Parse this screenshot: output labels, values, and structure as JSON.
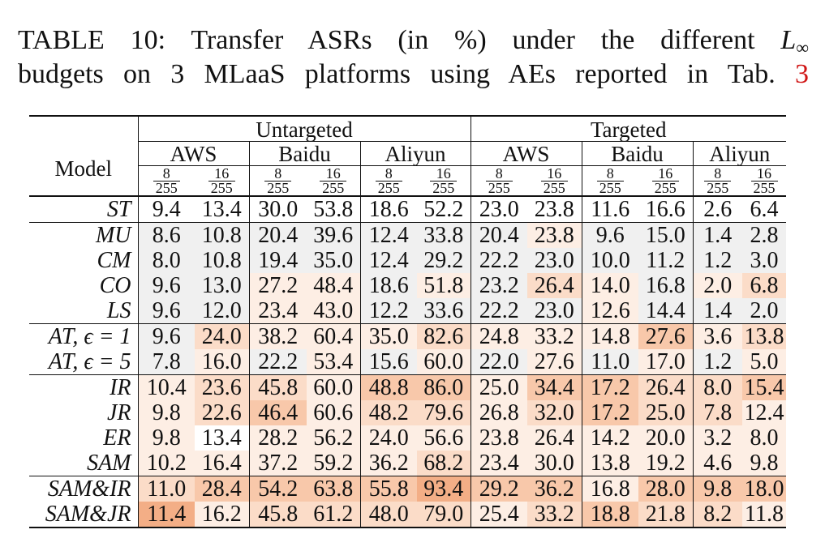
{
  "caption": {
    "line1_a": "TABLE 10: Transfer ASRs (in %) under the different ",
    "line1_L": "L",
    "line1_sub": "∞",
    "line2_a": "budgets on 3 MLaaS platforms using AEs reported in Tab. ",
    "ref": "3"
  },
  "header": {
    "model": "Model",
    "untargeted": "Untargeted",
    "targeted": "Targeted",
    "platforms": [
      "AWS",
      "Baidu",
      "Aliyun",
      "AWS",
      "Baidu",
      "Aliyun"
    ],
    "budget_a_num": "8",
    "budget_b_num": "16",
    "budget_den": "255"
  },
  "rows": [
    {
      "model": "ST",
      "values": [
        "9.4",
        "13.4",
        "30.0",
        "53.8",
        "18.6",
        "52.2",
        "23.0",
        "23.8",
        "11.6",
        "16.6",
        "2.6",
        "6.4"
      ]
    },
    {
      "model": "MU",
      "values": [
        "8.6",
        "10.8",
        "20.4",
        "39.6",
        "12.4",
        "33.8",
        "20.4",
        "23.8",
        "9.6",
        "15.0",
        "1.4",
        "2.8"
      ]
    },
    {
      "model": "CM",
      "values": [
        "8.0",
        "10.8",
        "19.4",
        "35.0",
        "12.4",
        "29.2",
        "22.2",
        "23.0",
        "10.0",
        "11.2",
        "1.2",
        "3.0"
      ]
    },
    {
      "model": "CO",
      "values": [
        "9.6",
        "13.0",
        "27.2",
        "48.4",
        "18.6",
        "51.8",
        "23.2",
        "26.4",
        "14.0",
        "16.8",
        "2.0",
        "6.8"
      ]
    },
    {
      "model": "LS",
      "values": [
        "9.6",
        "12.0",
        "23.4",
        "43.0",
        "12.2",
        "33.6",
        "22.2",
        "23.0",
        "12.6",
        "14.4",
        "1.4",
        "2.0"
      ]
    },
    {
      "model": "AT, ϵ = 1",
      "values": [
        "9.6",
        "24.0",
        "38.2",
        "60.4",
        "35.0",
        "82.6",
        "24.8",
        "33.2",
        "14.8",
        "27.6",
        "3.6",
        "13.8"
      ]
    },
    {
      "model": "AT, ϵ = 5",
      "values": [
        "7.8",
        "16.0",
        "22.2",
        "53.4",
        "15.6",
        "60.0",
        "22.0",
        "27.6",
        "11.0",
        "17.0",
        "1.2",
        "5.0"
      ]
    },
    {
      "model": "IR",
      "values": [
        "10.4",
        "23.6",
        "45.8",
        "60.0",
        "48.8",
        "86.0",
        "25.0",
        "34.4",
        "17.2",
        "26.4",
        "8.0",
        "15.4"
      ]
    },
    {
      "model": "JR",
      "values": [
        "9.8",
        "22.6",
        "46.4",
        "60.6",
        "48.2",
        "79.6",
        "26.8",
        "32.0",
        "17.2",
        "25.0",
        "7.8",
        "12.4"
      ]
    },
    {
      "model": "ER",
      "values": [
        "9.8",
        "13.4",
        "28.2",
        "56.2",
        "24.0",
        "56.6",
        "23.8",
        "26.4",
        "14.2",
        "20.0",
        "3.2",
        "8.0"
      ]
    },
    {
      "model": "SAM",
      "values": [
        "10.2",
        "16.4",
        "37.2",
        "59.2",
        "36.2",
        "68.2",
        "23.4",
        "30.0",
        "13.8",
        "19.2",
        "4.6",
        "9.8"
      ]
    },
    {
      "model": "SAM&IR",
      "values": [
        "11.0",
        "28.4",
        "54.2",
        "63.8",
        "55.8",
        "93.4",
        "29.2",
        "36.2",
        "16.8",
        "28.0",
        "9.8",
        "18.0"
      ]
    },
    {
      "model": "SAM&JR",
      "values": [
        "11.4",
        "16.2",
        "45.8",
        "61.2",
        "48.0",
        "79.0",
        "25.4",
        "33.2",
        "18.8",
        "21.8",
        "8.2",
        "11.8"
      ]
    }
  ],
  "shading": {
    "gray": "#f0f0f0",
    "palette": [
      "#ffffff",
      "#fdeee4",
      "#fbdcc8",
      "#f8c8aa",
      "#f3ae86"
    ],
    "levels": [
      [
        0,
        0,
        0,
        0,
        0,
        0,
        0,
        0,
        0,
        0,
        0,
        0
      ],
      [
        0,
        0,
        0,
        0,
        0,
        0,
        0,
        1,
        0,
        0,
        0,
        0
      ],
      [
        0,
        0,
        0,
        0,
        0,
        0,
        0,
        0,
        0,
        0,
        0,
        0
      ],
      [
        0,
        0,
        1,
        1,
        0,
        1,
        0,
        2,
        1,
        0,
        1,
        2
      ],
      [
        0,
        0,
        1,
        1,
        0,
        0,
        0,
        0,
        1,
        0,
        0,
        0
      ],
      [
        0,
        2,
        1,
        1,
        1,
        2,
        1,
        1,
        1,
        3,
        1,
        2
      ],
      [
        0,
        1,
        0,
        1,
        0,
        1,
        0,
        1,
        0,
        1,
        0,
        1
      ],
      [
        1,
        2,
        2,
        1,
        3,
        3,
        1,
        3,
        3,
        2,
        2,
        3
      ],
      [
        1,
        2,
        3,
        1,
        2,
        2,
        1,
        2,
        3,
        2,
        2,
        1
      ],
      [
        1,
        0,
        1,
        1,
        1,
        1,
        1,
        1,
        1,
        1,
        1,
        1
      ],
      [
        1,
        1,
        1,
        1,
        1,
        2,
        1,
        1,
        1,
        1,
        1,
        1
      ],
      [
        2,
        3,
        3,
        3,
        3,
        4,
        3,
        3,
        1,
        3,
        3,
        3
      ],
      [
        4,
        1,
        2,
        2,
        2,
        2,
        1,
        2,
        3,
        2,
        2,
        1
      ]
    ]
  }
}
